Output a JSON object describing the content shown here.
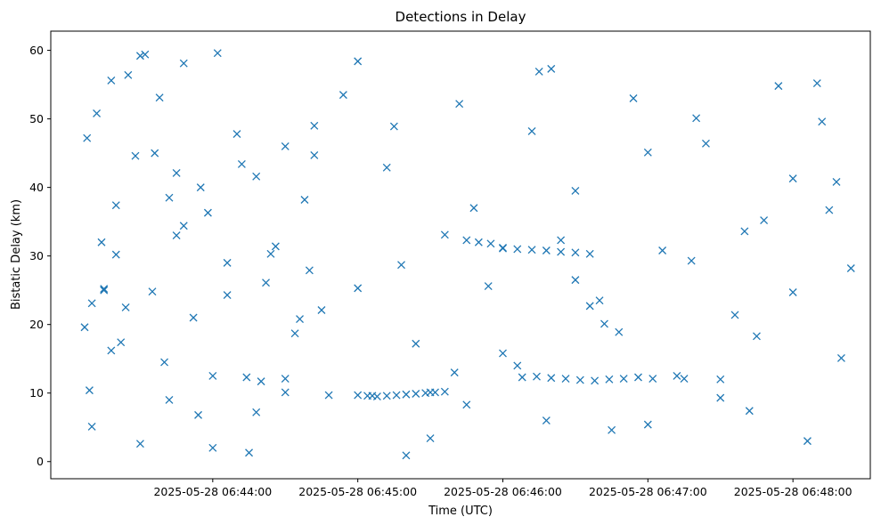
{
  "chart_data": {
    "type": "scatter",
    "title": "Detections in Delay",
    "xlabel": "Time (UTC)",
    "ylabel": "Bistatic Delay (km)",
    "x_ticks": [
      "2025-05-28 06:44:00",
      "2025-05-28 06:45:00",
      "2025-05-28 06:46:00",
      "2025-05-28 06:47:00",
      "2025-05-28 06:48:00"
    ],
    "y_ticks": [
      "0",
      "10",
      "20",
      "30",
      "40",
      "50",
      "60"
    ],
    "xlim": [
      "2025-05-28 06:42:53",
      "2025-05-28 06:48:32"
    ],
    "ylim": [
      -2.5,
      62.8
    ],
    "grid": false,
    "marker": "x",
    "color": "#1f77b4",
    "series": [
      {
        "x": [
          "06:43:08",
          "06:43:09",
          "06:43:10",
          "06:43:12",
          "06:43:15",
          "06:43:18",
          "06:43:20",
          "06:43:22",
          "06:43:25",
          "06:43:28",
          "06:43:32",
          "06:43:35",
          "06:43:38",
          "06:43:42",
          "06:43:45",
          "06:43:48",
          "06:43:52",
          "06:43:55",
          "06:43:58",
          "06:44:02",
          "06:44:06",
          "06:44:10",
          "06:44:14",
          "06:44:18",
          "06:44:22",
          "06:44:26",
          "06:44:30",
          "06:44:34",
          "06:44:38",
          "06:44:42",
          "06:43:10",
          "06:43:14",
          "06:43:18",
          "06:43:24",
          "06:43:30",
          "06:43:36",
          "06:43:42",
          "06:43:48",
          "06:43:54",
          "06:44:00",
          "06:44:06",
          "06:44:12",
          "06:44:18",
          "06:44:24",
          "06:44:30",
          "06:44:36",
          "06:44:42",
          "06:44:48",
          "06:44:54",
          "06:45:00",
          "06:45:06",
          "06:45:12",
          "06:45:18",
          "06:45:24",
          "06:45:30",
          "06:45:36",
          "06:45:42",
          "06:45:48",
          "06:45:54",
          "06:46:00",
          "06:46:06",
          "06:46:12",
          "06:46:18",
          "06:46:24",
          "06:46:30",
          "06:46:36",
          "06:46:42",
          "06:46:48",
          "06:46:54",
          "06:47:00",
          "06:47:06",
          "06:47:12",
          "06:47:18",
          "06:47:24",
          "06:47:30",
          "06:47:36",
          "06:47:42",
          "06:47:48",
          "06:47:54",
          "06:48:00",
          "06:48:06",
          "06:48:12",
          "06:48:18",
          "06:48:24",
          "06:43:07",
          "06:43:20",
          "06:43:40",
          "06:44:00",
          "06:44:20",
          "06:44:40",
          "06:45:00",
          "06:45:20",
          "06:45:40",
          "06:46:00",
          "06:46:20",
          "06:46:40",
          "06:47:00",
          "06:47:20",
          "06:47:40",
          "06:48:00",
          "06:48:20",
          "06:43:15",
          "06:43:45",
          "06:44:15",
          "06:44:45",
          "06:45:15",
          "06:45:45",
          "06:46:15",
          "06:46:45",
          "06:47:15",
          "06:47:45",
          "06:48:15",
          "06:43:30",
          "06:44:30",
          "06:45:30",
          "06:46:30",
          "06:47:30",
          "06:48:10"
        ],
        "y": [
          47.2,
          10.4,
          23.1,
          50.8,
          25.0,
          55.6,
          30.2,
          17.4,
          56.4,
          44.6,
          59.4,
          24.8,
          53.1,
          38.5,
          33.0,
          58.1,
          21.0,
          40.0,
          36.3,
          59.6,
          29.0,
          47.8,
          12.3,
          41.6,
          26.1,
          31.4,
          10.1,
          18.7,
          38.2,
          49.0,
          5.1,
          32.0,
          16.2,
          22.5,
          2.6,
          45.0,
          9.0,
          34.4,
          6.8,
          12.5,
          24.3,
          43.4,
          7.2,
          30.3,
          12.1,
          20.8,
          44.7,
          9.7,
          53.5,
          25.3,
          9.6,
          42.9,
          28.7,
          17.2,
          10.1,
          33.1,
          52.2,
          37.0,
          25.6,
          15.8,
          14.0,
          48.2,
          6.0,
          32.3,
          39.5,
          22.7,
          20.1,
          18.9,
          53.0,
          45.1,
          30.8,
          12.5,
          29.3,
          46.4,
          12.0,
          21.4,
          7.4,
          35.2,
          54.8,
          24.7,
          3.0,
          49.6,
          40.8,
          28.2,
          19.6,
          37.4,
          14.5,
          2.0,
          11.7,
          27.9,
          58.4,
          0.9,
          13.0,
          31.1,
          57.3,
          23.5,
          5.4,
          50.1,
          33.6,
          41.3,
          15.1,
          25.2,
          42.1,
          1.3,
          22.1,
          48.9,
          8.3,
          56.9,
          4.6,
          12.1,
          18.3,
          36.7,
          59.2,
          46.0,
          3.4,
          26.5,
          9.3,
          55.2
        ]
      },
      {
        "name_hidden": "",
        "x": [
          "06:45:00",
          "06:45:04",
          "06:45:08",
          "06:45:12",
          "06:45:16",
          "06:45:20",
          "06:45:24",
          "06:45:28",
          "06:45:32",
          "06:45:36",
          "06:46:00",
          "06:46:06",
          "06:46:12",
          "06:46:18",
          "06:46:24",
          "06:46:30",
          "06:46:36",
          "06:45:45",
          "06:45:50",
          "06:45:55",
          "06:46:08",
          "06:46:14",
          "06:46:20",
          "06:46:26",
          "06:46:32",
          "06:46:38",
          "06:46:44",
          "06:46:50",
          "06:46:56",
          "06:47:02"
        ],
        "y": [
          9.7,
          9.6,
          9.5,
          9.6,
          9.7,
          9.8,
          9.9,
          10.0,
          10.1,
          10.2,
          31.2,
          31.0,
          30.9,
          30.8,
          30.6,
          30.5,
          30.3,
          32.3,
          32.0,
          31.8,
          12.3,
          12.4,
          12.2,
          12.1,
          11.9,
          11.8,
          12.0,
          12.1,
          12.3,
          12.1
        ]
      }
    ]
  }
}
